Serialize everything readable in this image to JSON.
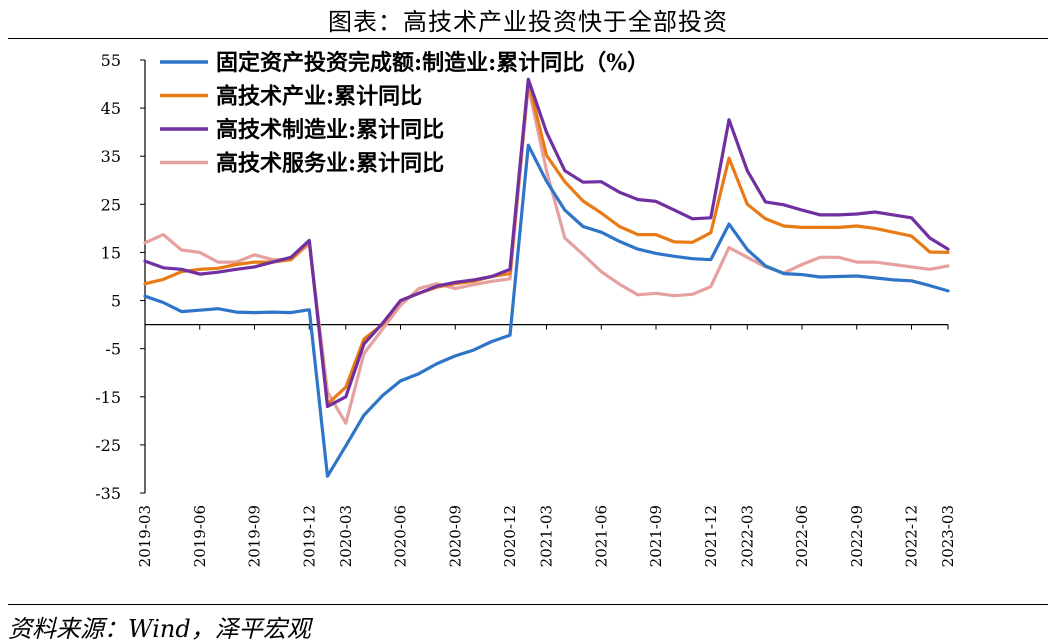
{
  "title": "图表：高技术产业投资快于全部投资",
  "source": "资料来源：Wind，泽平宏观",
  "chart_data": {
    "type": "line",
    "x": [
      "2019-03",
      "2019-04",
      "2019-05",
      "2019-06",
      "2019-07",
      "2019-08",
      "2019-09",
      "2019-10",
      "2019-11",
      "2019-12",
      "2020-02",
      "2020-03",
      "2020-04",
      "2020-05",
      "2020-06",
      "2020-07",
      "2020-08",
      "2020-09",
      "2020-10",
      "2020-11",
      "2020-12",
      "2021-02",
      "2021-03",
      "2021-04",
      "2021-05",
      "2021-06",
      "2021-07",
      "2021-08",
      "2021-09",
      "2021-10",
      "2021-11",
      "2021-12",
      "2022-02",
      "2022-03",
      "2022-04",
      "2022-05",
      "2022-06",
      "2022-07",
      "2022-08",
      "2022-09",
      "2022-10",
      "2022-11",
      "2022-12",
      "2023-02",
      "2023-03"
    ],
    "x_tick_labels": [
      "2019-03",
      "2019-06",
      "2019-09",
      "2019-12",
      "2020-03",
      "2020-06",
      "2020-09",
      "2020-12",
      "2021-03",
      "2021-06",
      "2021-09",
      "2021-12",
      "2022-03",
      "2022-06",
      "2022-09",
      "2022-12",
      "2023-03"
    ],
    "ylim": [
      -35,
      55
    ],
    "yticks": [
      55,
      45,
      35,
      25,
      15,
      5,
      -5,
      -15,
      -25,
      -35
    ],
    "grid": false,
    "legend_position": "top-left",
    "series": [
      {
        "name": "固定资产投资完成额:制造业:累计同比（%）",
        "color": "#2E75C8",
        "values": [
          5.9,
          4.6,
          2.7,
          3.0,
          3.3,
          2.6,
          2.5,
          2.6,
          2.5,
          3.1,
          -31.5,
          -25.2,
          -18.8,
          -14.8,
          -11.7,
          -10.2,
          -8.1,
          -6.5,
          -5.3,
          -3.5,
          -2.2,
          37.3,
          29.8,
          23.8,
          20.4,
          19.2,
          17.3,
          15.7,
          14.8,
          14.2,
          13.7,
          13.5,
          20.9,
          15.6,
          12.2,
          10.6,
          10.4,
          9.9,
          10.0,
          10.1,
          9.7,
          9.3,
          9.1,
          8.1,
          7.0
        ]
      },
      {
        "name": "高技术产业:累计同比",
        "color": "#E97B16",
        "values": [
          8.5,
          9.4,
          11.0,
          11.5,
          11.7,
          12.5,
          13.0,
          13.0,
          13.5,
          17.3,
          -16.5,
          -13.0,
          -3.0,
          0.0,
          5.0,
          6.5,
          7.8,
          8.5,
          9.0,
          10.0,
          10.6,
          50.6,
          35.2,
          29.7,
          25.7,
          23.2,
          20.4,
          18.7,
          18.7,
          17.2,
          17.1,
          19.1,
          34.6,
          25.0,
          22.0,
          20.5,
          20.2,
          20.2,
          20.2,
          20.5,
          20.0,
          19.2,
          18.4,
          15.1,
          15.0
        ]
      },
      {
        "name": "高技术制造业:累计同比",
        "color": "#7030A0",
        "values": [
          13.2,
          11.8,
          11.5,
          10.5,
          10.9,
          11.5,
          12.0,
          13.0,
          14.0,
          17.5,
          -17.0,
          -15.0,
          -4.0,
          0.2,
          5.0,
          6.5,
          8.0,
          8.8,
          9.3,
          10.0,
          11.5,
          51.0,
          40.0,
          32.0,
          29.6,
          29.7,
          27.5,
          26.0,
          25.6,
          23.8,
          22.0,
          22.2,
          42.6,
          32.0,
          25.5,
          24.9,
          23.8,
          22.8,
          22.8,
          23.0,
          23.4,
          22.8,
          22.2,
          18.0,
          15.7
        ]
      },
      {
        "name": "高技术服务业:累计同比",
        "color": "#E6A0A0",
        "values": [
          17.0,
          18.7,
          15.5,
          15.0,
          13.0,
          13.0,
          14.5,
          13.5,
          13.5,
          16.8,
          -14.0,
          -20.5,
          -6.0,
          -1.0,
          4.0,
          7.5,
          8.5,
          7.5,
          8.3,
          9.0,
          9.5,
          49.6,
          32.0,
          18.0,
          14.6,
          11.0,
          8.4,
          6.2,
          6.5,
          6.0,
          6.3,
          7.9,
          16.0,
          14.0,
          12.0,
          10.7,
          12.5,
          14.0,
          14.0,
          13.0,
          13.0,
          12.5,
          12.0,
          11.5,
          12.2
        ]
      }
    ]
  }
}
